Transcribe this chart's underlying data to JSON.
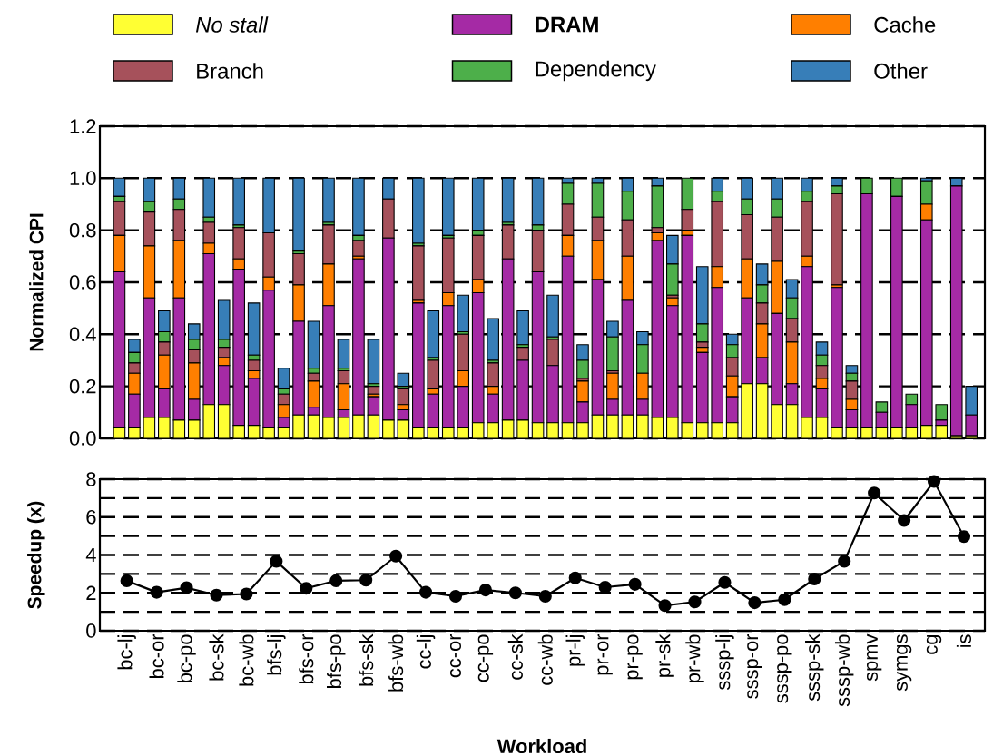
{
  "chart_data": [
    {
      "type": "bar",
      "stacked": true,
      "ylabel": "Normalized CPI",
      "legend": "top",
      "grid": "y",
      "tick_labels": "y",
      "categories": [
        null,
        null,
        null,
        null,
        null,
        null,
        null,
        null,
        null,
        null,
        null,
        null,
        null,
        null,
        null,
        null,
        null,
        null,
        null,
        null,
        null,
        null,
        null,
        null,
        null,
        null,
        null,
        null,
        null,
        null,
        null,
        null,
        null,
        null,
        null,
        null,
        null,
        null,
        null,
        null,
        null,
        null,
        null,
        null,
        null,
        null,
        null,
        null,
        null,
        null,
        null,
        null,
        null,
        null,
        null,
        null,
        null,
        null
      ],
      "ylim": [
        0,
        1.2
      ],
      "yticks": [
        {
          "value": 0,
          "label": "0.0"
        },
        0.2,
        0.4,
        0.6,
        0.8,
        {
          "value": 1,
          "label": "1.0"
        },
        1.2
      ],
      "series": [
        {
          "name": "*No stall*",
          "color": "#ffff33",
          "values": [
            0.04,
            0.04,
            0.08,
            0.08,
            0.07,
            0.07,
            0.13,
            0.13,
            0.05,
            0.05,
            0.04,
            0.04,
            0.09,
            0.09,
            0.08,
            0.08,
            0.09,
            0.09,
            0.07,
            0.07,
            0.04,
            0.04,
            0.04,
            0.04,
            0.06,
            0.06,
            0.07,
            0.07,
            0.06,
            0.06,
            0.06,
            0.06,
            0.09,
            0.09,
            0.09,
            0.09,
            0.08,
            0.08,
            0.06,
            0.06,
            0.06,
            0.06,
            0.21,
            0.21,
            0.13,
            0.13,
            0.08,
            0.08,
            0.04,
            0.04,
            0.04,
            0.04,
            0.04,
            0.04,
            0.05,
            0.05,
            0.01,
            0.01
          ]
        },
        {
          "name": "**DRAM**",
          "color": "#a52aa5",
          "values": [
            0.6,
            0.13,
            0.46,
            0.11,
            0.47,
            0.08,
            0.58,
            0.15,
            0.6,
            0.18,
            0.53,
            0.04,
            0.36,
            0.03,
            0.43,
            0.03,
            0.6,
            0.07,
            0.7,
            0.04,
            0.48,
            0.13,
            0.47,
            0.16,
            0.5,
            0.11,
            0.62,
            0.23,
            0.58,
            0.22,
            0.64,
            0.08,
            0.52,
            0.06,
            0.44,
            0.06,
            0.68,
            0.43,
            0.72,
            0.27,
            0.52,
            0.1,
            0.33,
            0.1,
            0.35,
            0.08,
            0.58,
            0.11,
            0.54,
            0.07,
            0.9,
            0.06,
            0.89,
            0.09,
            0.79,
            0.02,
            0.96,
            0.08
          ]
        },
        {
          "name": "Cache",
          "color": "#ff7f00",
          "values": [
            0.14,
            0.08,
            0.2,
            0.13,
            0.22,
            0.14,
            0.04,
            0.03,
            0.04,
            0.03,
            0.05,
            0.05,
            0.14,
            0.1,
            0.16,
            0.1,
            0.01,
            0.01,
            0.0,
            0.02,
            0.01,
            0.02,
            0.05,
            0.06,
            0.05,
            0.03,
            0.0,
            0.0,
            0.0,
            0.0,
            0.08,
            0.08,
            0.15,
            0.1,
            0.17,
            0.1,
            0.03,
            0.03,
            0.02,
            0.02,
            0.08,
            0.08,
            0.15,
            0.13,
            0.2,
            0.16,
            0.04,
            0.04,
            0.01,
            0.04,
            0,
            0,
            0,
            0,
            0.06,
            0,
            0,
            0
          ]
        },
        {
          "name": "Branch",
          "color": "#a6515b",
          "values": [
            0.13,
            0.04,
            0.13,
            0.05,
            0.12,
            0.05,
            0.08,
            0.04,
            0.12,
            0.04,
            0.17,
            0.04,
            0.12,
            0.03,
            0.15,
            0.05,
            0.06,
            0.03,
            0.15,
            0.06,
            0.21,
            0.11,
            0.21,
            0.14,
            0.17,
            0.09,
            0.13,
            0.05,
            0.16,
            0.1,
            0.12,
            0.01,
            0.09,
            0.01,
            0.14,
            0.0,
            0.02,
            0.01,
            0.08,
            0.02,
            0.25,
            0.07,
            0.17,
            0.08,
            0.17,
            0.09,
            0.21,
            0.05,
            0.35,
            0.07,
            0,
            0,
            0,
            0,
            0,
            0,
            0,
            0
          ]
        },
        {
          "name": "Dependency",
          "color": "#4daf4a",
          "values": [
            0.02,
            0.04,
            0.04,
            0.04,
            0.04,
            0.04,
            0.02,
            0.03,
            0.01,
            0.02,
            0.0,
            0.02,
            0.01,
            0.02,
            0.01,
            0.01,
            0.02,
            0.01,
            0.0,
            0.01,
            0.01,
            0.01,
            0.01,
            0.01,
            0.02,
            0.01,
            0.01,
            0.01,
            0.02,
            0.01,
            0.08,
            0.07,
            0.13,
            0.13,
            0.11,
            0.11,
            0.16,
            0.12,
            0.12,
            0.07,
            0.04,
            0.05,
            0.06,
            0.07,
            0.07,
            0.08,
            0.04,
            0.04,
            0.03,
            0.03,
            0.06,
            0.04,
            0.07,
            0.04,
            0.09,
            0.06,
            0,
            0
          ]
        },
        {
          "name": "Other",
          "color": "#377eb8",
          "values": [
            0.07,
            0.05,
            0.09,
            0.08,
            0.08,
            0.06,
            0.15,
            0.15,
            0.18,
            0.2,
            0.21,
            0.08,
            0.28,
            0.18,
            0.17,
            0.11,
            0.22,
            0.17,
            0.08,
            0.05,
            0.25,
            0.18,
            0.22,
            0.14,
            0.2,
            0.16,
            0.17,
            0.13,
            0.18,
            0.16,
            0.02,
            0.06,
            0.02,
            0.06,
            0.05,
            0.05,
            0.03,
            0.11,
            0.0,
            0.22,
            0.05,
            0.04,
            0.08,
            0.08,
            0.08,
            0.07,
            0.05,
            0.05,
            0.03,
            0.03,
            0,
            0,
            0,
            0,
            0.01,
            0,
            0.03,
            0.11
          ]
        }
      ]
    },
    {
      "type": "line",
      "ylabel": "Speedup (x)",
      "xlabel": "Workload",
      "grid": "y",
      "marker": "circle",
      "line_style": "solid",
      "categories": [
        "bc-lj",
        "bc-or",
        "bc-po",
        "bc-sk",
        "bc-wb",
        "bfs-lj",
        "bfs-or",
        "bfs-po",
        "bfs-sk",
        "bfs-wb",
        "cc-lj",
        "cc-or",
        "cc-po",
        "cc-sk",
        "cc-wb",
        "pr-lj",
        "pr-or",
        "pr-po",
        "pr-sk",
        "pr-wb",
        "sssp-lj",
        "sssp-or",
        "sssp-po",
        "sssp-sk",
        "sssp-wb",
        "spmv",
        "symgs",
        "cg",
        "is"
      ],
      "ylim": [
        0,
        8
      ],
      "yticks": [
        0,
        {
          "value": 1,
          "label": null
        },
        2,
        {
          "value": 3,
          "label": null
        },
        4,
        {
          "value": 5,
          "label": null
        },
        6,
        {
          "value": 7,
          "label": null
        },
        8
      ],
      "series": [
        {
          "color": "#000000",
          "values": [
            2.64,
            2.03,
            2.27,
            1.88,
            1.94,
            3.67,
            2.24,
            2.64,
            2.67,
            3.94,
            2.03,
            1.82,
            2.15,
            2.0,
            1.82,
            2.79,
            2.3,
            2.45,
            1.33,
            1.52,
            2.55,
            1.48,
            1.64,
            2.73,
            3.67,
            7.27,
            5.82,
            7.88,
            4.97
          ]
        }
      ]
    }
  ]
}
